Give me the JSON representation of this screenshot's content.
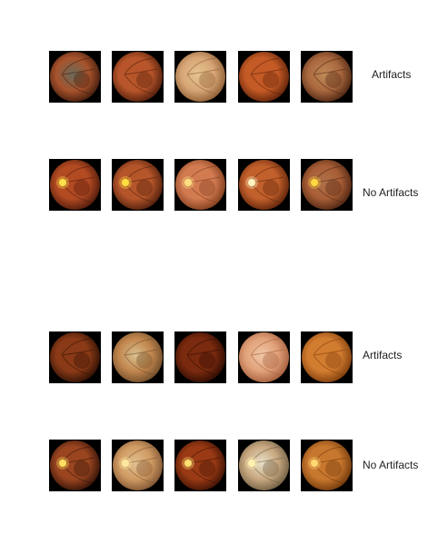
{
  "groups": [
    {
      "rows": [
        {
          "label": "Artifacts",
          "images": [
            {
              "name": "fundus-image",
              "tone": "#a8532c",
              "rim": "#3e1a0c",
              "disc": null,
              "haze": "#6a6a5a"
            },
            {
              "name": "fundus-image",
              "tone": "#b8552a",
              "rim": "#4a1c0a",
              "disc": null,
              "haze": null
            },
            {
              "name": "fundus-image",
              "tone": "#d7a575",
              "rim": "#8a5a30",
              "disc": null,
              "haze": "#e5c590"
            },
            {
              "name": "fundus-image",
              "tone": "#c45a25",
              "rim": "#5a1f08",
              "disc": null,
              "haze": null
            },
            {
              "name": "fundus-image",
              "tone": "#a9683e",
              "rim": "#4a2310",
              "disc": null,
              "haze": "#c08a58"
            }
          ]
        },
        {
          "label": "No Artifacts",
          "images": [
            {
              "name": "fundus-image",
              "tone": "#b24a22",
              "rim": "#4a180a",
              "disc": "#ffe14a",
              "haze": null
            },
            {
              "name": "fundus-image",
              "tone": "#b5552a",
              "rim": "#4a1c0a",
              "disc": "#ffdf40",
              "haze": null
            },
            {
              "name": "fundus-image",
              "tone": "#d27a50",
              "rim": "#7a3a1a",
              "disc": "#ffe080",
              "haze": null
            },
            {
              "name": "fundus-image",
              "tone": "#c2602c",
              "rim": "#5a2008",
              "disc": "#fff4c0",
              "haze": null
            },
            {
              "name": "fundus-image",
              "tone": "#a85e36",
              "rim": "#4a2210",
              "disc": "#ffd840",
              "haze": "#b07048"
            }
          ]
        }
      ]
    },
    {
      "rows": [
        {
          "label": "Artifacts",
          "images": [
            {
              "name": "fundus-image",
              "tone": "#8a3a16",
              "rim": "#2a0e04",
              "disc": null,
              "haze": null
            },
            {
              "name": "fundus-image",
              "tone": "#c2864e",
              "rim": "#6a4a28",
              "disc": null,
              "haze": "#d8c090"
            },
            {
              "name": "fundus-image",
              "tone": "#7a2a0e",
              "rim": "#2a0a02",
              "disc": null,
              "haze": null
            },
            {
              "name": "fundus-image",
              "tone": "#e0a078",
              "rim": "#a05a38",
              "disc": null,
              "haze": "#f0c8a8"
            },
            {
              "name": "fundus-image",
              "tone": "#d27c30",
              "rim": "#7a3a0a",
              "disc": null,
              "haze": null
            }
          ]
        },
        {
          "label": "No Artifacts",
          "images": [
            {
              "name": "fundus-image",
              "tone": "#9a4520",
              "rim": "#2e1006",
              "disc": "#ffe060",
              "haze": null
            },
            {
              "name": "fundus-image",
              "tone": "#d09a62",
              "rim": "#7a5030",
              "disc": "#ffe8a0",
              "haze": "#e0c090"
            },
            {
              "name": "fundus-image",
              "tone": "#9a3a14",
              "rim": "#3a1004",
              "disc": "#ffe070",
              "haze": null
            },
            {
              "name": "fundus-image",
              "tone": "#c8a880",
              "rim": "#6a5a40",
              "disc": "#fff0b0",
              "haze": "#e8e0c8"
            },
            {
              "name": "fundus-image",
              "tone": "#c8772e",
              "rim": "#6a3408",
              "disc": "#ffd870",
              "haze": null
            }
          ]
        }
      ]
    }
  ]
}
